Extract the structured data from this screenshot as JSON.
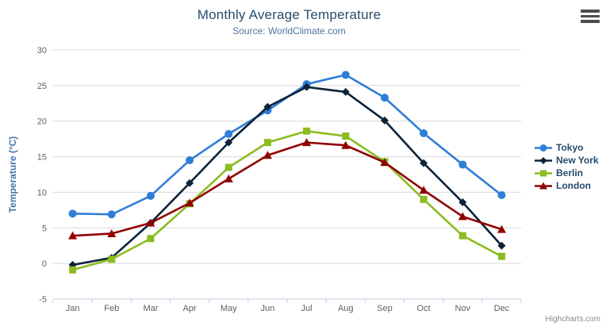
{
  "header": {
    "title": "Monthly Average Temperature",
    "subtitle": "Source: WorldClimate.com"
  },
  "icons": {
    "context_menu": "hamburger-icon"
  },
  "credit": {
    "label": "Highcharts.com"
  },
  "colors": {
    "title": "#274b6d",
    "subtitle": "#4d759e",
    "axis_label": "#606060",
    "axis_title": "#4572a7",
    "gridline": "#d8d8d8",
    "axis_line": "#c0d0e0",
    "legend_text": "#274b6d",
    "credit": "#8a8a8a",
    "background": "#ffffff"
  },
  "chart_data": {
    "type": "line",
    "title": "Monthly Average Temperature",
    "subtitle": "Source: WorldClimate.com",
    "categories": [
      "Jan",
      "Feb",
      "Mar",
      "Apr",
      "May",
      "Jun",
      "Jul",
      "Aug",
      "Sep",
      "Oct",
      "Nov",
      "Dec"
    ],
    "series": [
      {
        "name": "Tokyo",
        "color": "#2f7ed8",
        "marker": "circle",
        "values": [
          7.0,
          6.9,
          9.5,
          14.5,
          18.2,
          21.5,
          25.2,
          26.5,
          23.3,
          18.3,
          13.9,
          9.6
        ]
      },
      {
        "name": "New York",
        "color": "#0d233a",
        "marker": "diamond",
        "values": [
          -0.2,
          0.8,
          5.7,
          11.3,
          17.0,
          22.0,
          24.8,
          24.1,
          20.1,
          14.1,
          8.6,
          2.5
        ]
      },
      {
        "name": "Berlin",
        "color": "#8bbc21",
        "marker": "square",
        "values": [
          -0.9,
          0.6,
          3.5,
          8.4,
          13.5,
          17.0,
          18.6,
          17.9,
          14.3,
          9.0,
          3.9,
          1.0
        ]
      },
      {
        "name": "London",
        "color": "#910000",
        "marker": "triangle",
        "values": [
          3.9,
          4.2,
          5.7,
          8.5,
          11.9,
          15.2,
          17.0,
          16.6,
          14.2,
          10.3,
          6.6,
          4.8
        ]
      }
    ],
    "xlabel": "",
    "ylabel": "Temperature (°C)",
    "ylim": [
      -5,
      30
    ],
    "ytick_interval": 5,
    "grid": true,
    "legend_position": "right"
  }
}
